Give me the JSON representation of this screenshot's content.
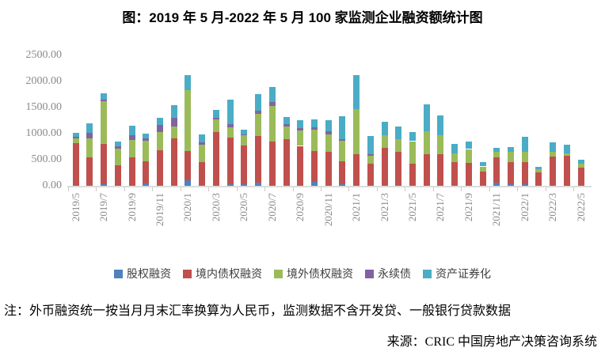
{
  "title": "图：2019 年 5 月-2022 年 5 月 100 家监测企业融资额统计图",
  "note": "注：外币融资统一按当月月末汇率换算为人民币，监测数据不含开发贷、一般银行贷款数据",
  "source": "来源：CRIC 中国房地产决策咨询系统",
  "colors": {
    "axis_text": "#8a8a8a",
    "axis_line": "#dcdcdc",
    "legend_text": "#3f3f3f",
    "background": "#ffffff"
  },
  "chart_data": {
    "type": "bar",
    "stacked": true,
    "title": "图：2019 年 5 月-2022 年 5 月 100 家监测企业融资额统计图",
    "xlabel": "",
    "ylabel": "",
    "ylim": [
      0,
      2500
    ],
    "y_ticks": [
      "0.00",
      "500.00",
      "1000.00",
      "1500.00",
      "2000.00",
      "2500.00"
    ],
    "x_tick_every": 2,
    "grid": false,
    "legend_position": "bottom",
    "categories": [
      "2019/5",
      "2019/6",
      "2019/7",
      "2019/8",
      "2019/9",
      "2019/10",
      "2019/11",
      "2019/12",
      "2020/1",
      "2020/2",
      "2020/3",
      "2020/4",
      "2020/5",
      "2020/6",
      "2020/7",
      "2020/8",
      "2020/9",
      "2020/10",
      "2020/11",
      "2020/12",
      "2021/1",
      "2021/2",
      "2021/3",
      "2021/4",
      "2021/5",
      "2021/6",
      "2021/7",
      "2021/8",
      "2021/9",
      "2021/10",
      "2021/11",
      "2021/12",
      "2022/1",
      "2022/2",
      "2022/3",
      "2022/4",
      "2022/5"
    ],
    "series": [
      {
        "name": "股权融资",
        "color": "#4F81BD",
        "values": [
          10,
          10,
          35,
          10,
          10,
          50,
          10,
          10,
          100,
          10,
          10,
          25,
          25,
          60,
          10,
          10,
          10,
          75,
          10,
          30,
          10,
          10,
          10,
          10,
          10,
          10,
          10,
          10,
          10,
          10,
          60,
          30,
          25,
          10,
          10,
          0,
          10
        ]
      },
      {
        "name": "境内债权融资",
        "color": "#C0504D",
        "values": [
          810,
          540,
          770,
          385,
          540,
          420,
          665,
          895,
          560,
          440,
          1015,
          900,
          750,
          890,
          845,
          880,
          755,
          585,
          645,
          435,
          600,
          410,
          715,
          640,
          420,
          600,
          600,
          440,
          430,
          260,
          480,
          425,
          435,
          250,
          555,
          580,
          340
        ]
      },
      {
        "name": "境外债权融资",
        "color": "#9BBB59",
        "values": [
          85,
          360,
          810,
          320,
          325,
          400,
          350,
          230,
          1170,
          335,
          250,
          190,
          190,
          425,
          680,
          240,
          290,
          415,
          325,
          400,
          855,
          150,
          240,
          250,
          425,
          430,
          360,
          170,
          265,
          100,
          110,
          195,
          190,
          60,
          90,
          35,
          75
        ]
      },
      {
        "name": "永续债",
        "color": "#8064A2",
        "values": [
          35,
          100,
          40,
          40,
          100,
          35,
          135,
          165,
          0,
          50,
          30,
          60,
          15,
          65,
          75,
          50,
          50,
          40,
          60,
          35,
          0,
          40,
          0,
          0,
          0,
          0,
          0,
          0,
          0,
          0,
          0,
          0,
          0,
          0,
          0,
          0,
          0
        ]
      },
      {
        "name": "资产证券化",
        "color": "#4BACC6",
        "values": [
          80,
          185,
          125,
          90,
          180,
          100,
          145,
          240,
          290,
          145,
          150,
          480,
          100,
          315,
          285,
          135,
          160,
          155,
          215,
          430,
          655,
          340,
          260,
          240,
          170,
          525,
          385,
          180,
          150,
          90,
          75,
          95,
          290,
          50,
          180,
          180,
          75
        ]
      }
    ]
  }
}
